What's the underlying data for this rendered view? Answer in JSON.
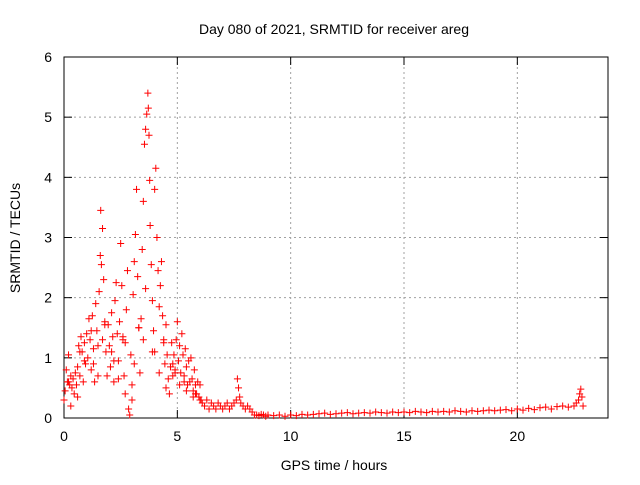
{
  "chart_data": {
    "type": "scatter",
    "title": "Day 080 of 2021, SRMTID for receiver areg",
    "xlabel": "GPS time / hours",
    "ylabel": "SRMTID / TECUs",
    "xlim": [
      0,
      24
    ],
    "ylim": [
      0,
      6
    ],
    "xticks": [
      0,
      5,
      10,
      15,
      20
    ],
    "yticks": [
      0,
      1,
      2,
      3,
      4,
      5,
      6
    ],
    "grid": true,
    "marker": "+",
    "color": "#ff0000",
    "series": [
      {
        "name": "SRMTID",
        "x": [
          0.0,
          0.05,
          0.1,
          0.15,
          0.2,
          0.25,
          0.3,
          0.35,
          0.4,
          0.45,
          0.5,
          0.55,
          0.6,
          0.65,
          0.7,
          0.75,
          0.8,
          0.85,
          0.9,
          0.95,
          1.0,
          1.05,
          1.1,
          1.15,
          1.2,
          1.25,
          1.3,
          1.35,
          1.4,
          1.45,
          1.5,
          1.55,
          1.6,
          1.62,
          1.65,
          1.7,
          1.75,
          1.8,
          1.85,
          1.9,
          1.95,
          2.0,
          2.05,
          2.1,
          2.15,
          2.2,
          2.25,
          2.3,
          2.35,
          2.4,
          2.45,
          2.5,
          2.55,
          2.6,
          2.65,
          2.7,
          2.75,
          2.8,
          2.85,
          2.9,
          2.95,
          3.0,
          3.05,
          3.1,
          3.15,
          3.2,
          3.25,
          3.3,
          3.35,
          3.4,
          3.45,
          3.5,
          3.55,
          3.6,
          3.65,
          3.7,
          3.72,
          3.75,
          3.78,
          3.8,
          3.85,
          3.9,
          3.95,
          4.0,
          4.05,
          4.1,
          4.15,
          4.2,
          4.25,
          4.3,
          4.35,
          4.4,
          4.45,
          4.5,
          4.55,
          4.6,
          4.65,
          4.7,
          4.75,
          4.8,
          4.85,
          4.9,
          4.95,
          5.0,
          5.05,
          5.1,
          5.15,
          5.2,
          5.25,
          5.3,
          5.35,
          5.4,
          5.45,
          5.5,
          5.55,
          5.6,
          5.65,
          5.7,
          5.75,
          5.8,
          5.85,
          5.9,
          5.95,
          6.0,
          6.05,
          6.1,
          6.2,
          6.3,
          6.4,
          6.5,
          6.6,
          6.7,
          6.8,
          6.9,
          7.0,
          7.1,
          7.2,
          7.3,
          7.4,
          7.5,
          7.6,
          7.65,
          7.7,
          7.75,
          7.8,
          7.9,
          8.0,
          8.1,
          8.2,
          8.3,
          8.4,
          8.5,
          8.6,
          8.7,
          8.8,
          8.9,
          9.0,
          9.25,
          9.5,
          9.75,
          10.0,
          10.25,
          10.5,
          10.75,
          11.0,
          11.25,
          11.5,
          11.75,
          12.0,
          12.25,
          12.5,
          12.75,
          13.0,
          13.25,
          13.5,
          13.75,
          14.0,
          14.25,
          14.5,
          14.75,
          15.0,
          15.25,
          15.5,
          15.75,
          16.0,
          16.25,
          16.5,
          16.75,
          17.0,
          17.25,
          17.5,
          17.75,
          18.0,
          18.25,
          18.5,
          18.75,
          19.0,
          19.25,
          19.5,
          19.75,
          20.0,
          20.25,
          20.5,
          20.75,
          21.0,
          21.25,
          21.5,
          21.75,
          22.0,
          22.25,
          22.5,
          22.6,
          22.7,
          22.75,
          22.8,
          22.85,
          22.9,
          0.3,
          0.6,
          0.9,
          1.2,
          1.5,
          1.8,
          2.1,
          2.4,
          2.7,
          3.0,
          3.3,
          3.6,
          3.9,
          4.2,
          4.5,
          4.8,
          5.1,
          5.4,
          5.7,
          6.0,
          0.2,
          0.7,
          1.3,
          1.7,
          2.2,
          2.6,
          3.1,
          3.5,
          4.0,
          4.4,
          4.9,
          5.3,
          5.8
        ],
        "y": [
          0.3,
          0.45,
          0.8,
          0.6,
          1.05,
          0.55,
          0.7,
          0.5,
          0.65,
          0.4,
          0.75,
          0.55,
          0.85,
          1.2,
          0.7,
          1.35,
          1.1,
          0.6,
          1.25,
          0.9,
          1.4,
          1.0,
          1.65,
          1.3,
          0.8,
          1.7,
          1.15,
          0.6,
          1.9,
          1.45,
          1.2,
          2.1,
          2.7,
          3.45,
          2.55,
          3.15,
          2.3,
          1.6,
          1.1,
          0.7,
          1.55,
          1.2,
          0.85,
          1.75,
          1.35,
          0.6,
          1.95,
          2.25,
          1.4,
          0.95,
          1.6,
          2.9,
          2.2,
          1.35,
          0.7,
          0.4,
          1.8,
          2.45,
          0.15,
          0.05,
          1.05,
          0.3,
          2.05,
          2.6,
          3.05,
          3.8,
          2.35,
          1.5,
          0.75,
          1.65,
          2.8,
          3.6,
          4.55,
          4.8,
          5.05,
          5.4,
          5.15,
          4.7,
          3.95,
          3.2,
          2.55,
          1.95,
          1.45,
          3.8,
          4.15,
          3.0,
          2.45,
          1.85,
          2.2,
          2.6,
          1.7,
          1.3,
          0.9,
          1.55,
          1.05,
          0.65,
          0.4,
          0.85,
          1.25,
          0.7,
          1.05,
          0.8,
          1.3,
          1.6,
          0.95,
          1.2,
          0.75,
          1.4,
          1.05,
          0.7,
          1.15,
          0.85,
          0.55,
          0.95,
          0.6,
          1.0,
          0.65,
          0.45,
          0.8,
          0.55,
          0.4,
          0.6,
          0.35,
          0.55,
          0.3,
          0.25,
          0.2,
          0.3,
          0.15,
          0.25,
          0.2,
          0.15,
          0.25,
          0.2,
          0.15,
          0.2,
          0.25,
          0.15,
          0.2,
          0.25,
          0.3,
          0.65,
          0.5,
          0.35,
          0.25,
          0.2,
          0.15,
          0.2,
          0.15,
          0.1,
          0.05,
          0.05,
          0.04,
          0.06,
          0.05,
          0.03,
          0.05,
          0.04,
          0.05,
          0.03,
          0.05,
          0.04,
          0.06,
          0.05,
          0.06,
          0.07,
          0.08,
          0.06,
          0.07,
          0.08,
          0.09,
          0.07,
          0.08,
          0.09,
          0.08,
          0.1,
          0.09,
          0.08,
          0.1,
          0.09,
          0.1,
          0.09,
          0.11,
          0.1,
          0.09,
          0.11,
          0.1,
          0.11,
          0.1,
          0.12,
          0.11,
          0.1,
          0.12,
          0.11,
          0.12,
          0.13,
          0.12,
          0.13,
          0.14,
          0.12,
          0.15,
          0.13,
          0.16,
          0.14,
          0.17,
          0.18,
          0.15,
          0.19,
          0.2,
          0.18,
          0.2,
          0.25,
          0.3,
          0.4,
          0.48,
          0.35,
          0.2,
          0.2,
          0.35,
          0.95,
          1.45,
          0.7,
          1.55,
          1.1,
          0.65,
          1.25,
          0.55,
          1.5,
          2.15,
          1.1,
          0.75,
          0.5,
          0.9,
          0.55,
          0.45,
          0.35,
          0.3,
          0.6,
          1.1,
          0.9,
          1.3,
          0.95,
          1.3,
          0.9,
          1.3,
          1.1,
          1.25,
          0.75,
          0.6,
          0.4
        ]
      }
    ]
  }
}
